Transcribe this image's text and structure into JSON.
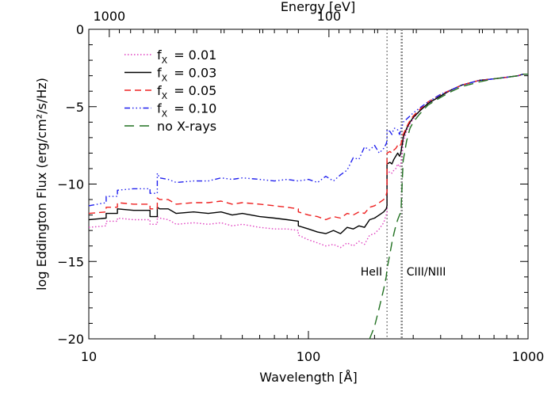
{
  "chart_data": {
    "type": "line",
    "xlabel": "Wavelength [Å]",
    "ylabel": "log Eddington Flux (erg/cm²/s/Hz)",
    "top_axis_label": "Energy [eV]",
    "x_scale": "log",
    "xlim": [
      10,
      1000
    ],
    "ylim": [
      -20,
      0
    ],
    "x_ticks": [
      {
        "value": 10,
        "label": "10"
      },
      {
        "value": 100,
        "label": "100"
      },
      {
        "value": 1000,
        "label": "1000"
      }
    ],
    "y_ticks": [
      {
        "value": 0,
        "label": "0"
      },
      {
        "value": -5,
        "label": "−5"
      },
      {
        "value": -10,
        "label": "−10"
      },
      {
        "value": -15,
        "label": "−15"
      },
      {
        "value": -20,
        "label": "−20"
      }
    ],
    "top_ticks": [
      {
        "energy_ev": 1000,
        "label": "1000"
      },
      {
        "energy_ev": 100,
        "label": "100"
      }
    ],
    "legend_position": "top-left",
    "vertical_markers": [
      {
        "x": 228,
        "label": "HeII",
        "style": "dotted"
      },
      {
        "x": 266,
        "label": "CIII/NIII",
        "style": "dotted-thick"
      }
    ],
    "series": [
      {
        "name": "f_x = 0.01",
        "legend_main": "f",
        "legend_sub": "X",
        "legend_value": "= 0.01",
        "color": "#e040c0",
        "dash": "1.5 2.5",
        "x": [
          10,
          12,
          12,
          13.5,
          13.5,
          16,
          19,
          19,
          20.5,
          20.5,
          21,
          23,
          25,
          30,
          35,
          40,
          45,
          50,
          60,
          70,
          80,
          90,
          90,
          100,
          110,
          120,
          130,
          140,
          150,
          160,
          170,
          180,
          190,
          200,
          210,
          220,
          226,
          228,
          228,
          235,
          240,
          245,
          250,
          255,
          260,
          262,
          264,
          266,
          268,
          270,
          280,
          290,
          300,
          320,
          350,
          400,
          450,
          500,
          600,
          700,
          800,
          900,
          950,
          1000
        ],
        "y": [
          -12.8,
          -12.7,
          -12.4,
          -12.4,
          -12.2,
          -12.3,
          -12.3,
          -12.6,
          -12.6,
          -12.1,
          -12.2,
          -12.3,
          -12.6,
          -12.5,
          -12.6,
          -12.5,
          -12.7,
          -12.6,
          -12.8,
          -12.9,
          -12.9,
          -13.0,
          -13.3,
          -13.6,
          -13.8,
          -14.0,
          -13.9,
          -14.1,
          -13.8,
          -14.0,
          -13.7,
          -13.9,
          -13.3,
          -13.2,
          -12.9,
          -12.5,
          -12.0,
          -11.8,
          -9.3,
          -9.2,
          -9.3,
          -9.1,
          -9.0,
          -8.7,
          -8.9,
          -8.8,
          -8.6,
          -8.1,
          -7.9,
          -7.3,
          -6.6,
          -6.1,
          -5.8,
          -5.3,
          -4.8,
          -4.3,
          -3.9,
          -3.6,
          -3.3,
          -3.2,
          -3.1,
          -3.0,
          -2.9,
          -2.9
        ]
      },
      {
        "name": "f_x = 0.03",
        "legend_main": "f",
        "legend_sub": "X",
        "legend_value": "= 0.03",
        "color": "#000000",
        "dash": "",
        "x": [
          10,
          12,
          12,
          13.5,
          13.5,
          16,
          19,
          19,
          20.5,
          20.5,
          21,
          23,
          25,
          30,
          35,
          40,
          45,
          50,
          60,
          70,
          80,
          90,
          90,
          100,
          110,
          120,
          130,
          140,
          150,
          160,
          170,
          180,
          190,
          200,
          210,
          220,
          226,
          228,
          228,
          235,
          240,
          245,
          250,
          255,
          260,
          262,
          264,
          266,
          268,
          270,
          280,
          290,
          300,
          320,
          350,
          400,
          450,
          500,
          600,
          700,
          800,
          900,
          950,
          1000
        ],
        "y": [
          -12.3,
          -12.2,
          -11.9,
          -11.9,
          -11.6,
          -11.7,
          -11.7,
          -12.1,
          -12.1,
          -11.5,
          -11.6,
          -11.6,
          -11.9,
          -11.8,
          -11.9,
          -11.8,
          -12.0,
          -11.9,
          -12.1,
          -12.2,
          -12.3,
          -12.4,
          -12.7,
          -12.9,
          -13.1,
          -13.2,
          -13.0,
          -13.2,
          -12.8,
          -12.9,
          -12.7,
          -12.8,
          -12.3,
          -12.2,
          -12.0,
          -11.8,
          -11.6,
          -11.4,
          -8.7,
          -8.6,
          -8.7,
          -8.4,
          -8.2,
          -8.0,
          -8.2,
          -8.1,
          -7.9,
          -7.6,
          -7.4,
          -7.0,
          -6.4,
          -6.0,
          -5.7,
          -5.3,
          -4.8,
          -4.3,
          -3.9,
          -3.6,
          -3.3,
          -3.2,
          -3.1,
          -3.0,
          -2.9,
          -2.9
        ]
      },
      {
        "name": "f_x = 0.05",
        "legend_main": "f",
        "legend_sub": "X",
        "legend_value": "= 0.05",
        "color": "#ee2020",
        "dash": "8 5",
        "x": [
          10,
          12,
          12,
          13.5,
          13.5,
          16,
          19,
          19,
          20.5,
          20.5,
          21,
          23,
          25,
          30,
          35,
          40,
          45,
          50,
          60,
          70,
          80,
          90,
          90,
          100,
          110,
          120,
          130,
          140,
          150,
          160,
          170,
          180,
          190,
          200,
          210,
          220,
          226,
          228,
          228,
          235,
          240,
          245,
          250,
          255,
          260,
          262,
          264,
          266,
          268,
          270,
          280,
          290,
          300,
          320,
          350,
          400,
          450,
          500,
          600,
          700,
          800,
          900,
          950,
          1000
        ],
        "y": [
          -11.9,
          -11.8,
          -11.5,
          -11.5,
          -11.2,
          -11.3,
          -11.3,
          -11.6,
          -11.6,
          -10.9,
          -11.0,
          -11.0,
          -11.3,
          -11.2,
          -11.2,
          -11.1,
          -11.3,
          -11.2,
          -11.3,
          -11.4,
          -11.5,
          -11.6,
          -11.8,
          -12.0,
          -12.1,
          -12.3,
          -12.1,
          -12.2,
          -11.9,
          -12.0,
          -11.8,
          -11.9,
          -11.5,
          -11.4,
          -11.2,
          -11.0,
          -10.7,
          -10.5,
          -8.0,
          -7.9,
          -8.0,
          -7.8,
          -7.7,
          -7.5,
          -7.6,
          -7.5,
          -7.4,
          -7.2,
          -7.1,
          -6.8,
          -6.3,
          -5.9,
          -5.6,
          -5.2,
          -4.7,
          -4.2,
          -3.9,
          -3.6,
          -3.3,
          -3.2,
          -3.1,
          -3.0,
          -2.9,
          -2.9
        ]
      },
      {
        "name": "f_x = 0.10",
        "legend_main": "f",
        "legend_sub": "X",
        "legend_value": "= 0.10",
        "color": "#2020ee",
        "dash": "7 3 1.5 3 1.5 3 1.5 3",
        "x": [
          10,
          12,
          12,
          13.5,
          13.5,
          16,
          19,
          19,
          20.5,
          20.5,
          21,
          23,
          25,
          30,
          35,
          40,
          45,
          50,
          60,
          70,
          80,
          90,
          90,
          100,
          110,
          120,
          130,
          140,
          150,
          160,
          170,
          180,
          190,
          200,
          210,
          220,
          226,
          228,
          228,
          235,
          240,
          245,
          250,
          255,
          260,
          262,
          264,
          266,
          268,
          270,
          280,
          290,
          300,
          320,
          350,
          400,
          450,
          500,
          600,
          700,
          800,
          900,
          950,
          1000
        ],
        "y": [
          -11.4,
          -11.2,
          -10.8,
          -10.8,
          -10.4,
          -10.3,
          -10.3,
          -10.6,
          -10.6,
          -9.3,
          -9.6,
          -9.7,
          -9.9,
          -9.8,
          -9.8,
          -9.6,
          -9.7,
          -9.6,
          -9.7,
          -9.8,
          -9.7,
          -9.8,
          -9.8,
          -9.7,
          -9.9,
          -9.5,
          -9.8,
          -9.4,
          -9.1,
          -8.3,
          -8.4,
          -7.6,
          -7.8,
          -7.5,
          -8.0,
          -7.7,
          -7.4,
          -7.2,
          -6.5,
          -6.6,
          -6.8,
          -6.4,
          -6.4,
          -6.5,
          -6.8,
          -6.6,
          -6.4,
          -6.3,
          -6.2,
          -6.0,
          -5.8,
          -5.6,
          -5.4,
          -5.1,
          -4.7,
          -4.2,
          -3.9,
          -3.6,
          -3.3,
          -3.2,
          -3.1,
          -3.0,
          -2.9,
          -2.9
        ]
      },
      {
        "name": "no X-rays",
        "legend_main": "no X-rays",
        "legend_sub": "",
        "legend_value": "",
        "color": "#207020",
        "dash": "12 7",
        "x": [
          190,
          200,
          210,
          220,
          226,
          228,
          235,
          240,
          245,
          250,
          255,
          260,
          262,
          264,
          266,
          268,
          270,
          280,
          290,
          300,
          320,
          350,
          400,
          450,
          500,
          600,
          700,
          800,
          900,
          950,
          1000
        ],
        "y": [
          -20,
          -19.2,
          -18.0,
          -16.8,
          -16.0,
          -15.5,
          -14.5,
          -13.8,
          -13.2,
          -12.7,
          -12.3,
          -12.0,
          -11.9,
          -11.7,
          -10.6,
          -9.5,
          -8.5,
          -7.2,
          -6.4,
          -6.0,
          -5.5,
          -4.9,
          -4.4,
          -4.0,
          -3.7,
          -3.4,
          -3.2,
          -3.1,
          -3.0,
          -2.9,
          -2.9
        ]
      }
    ]
  }
}
